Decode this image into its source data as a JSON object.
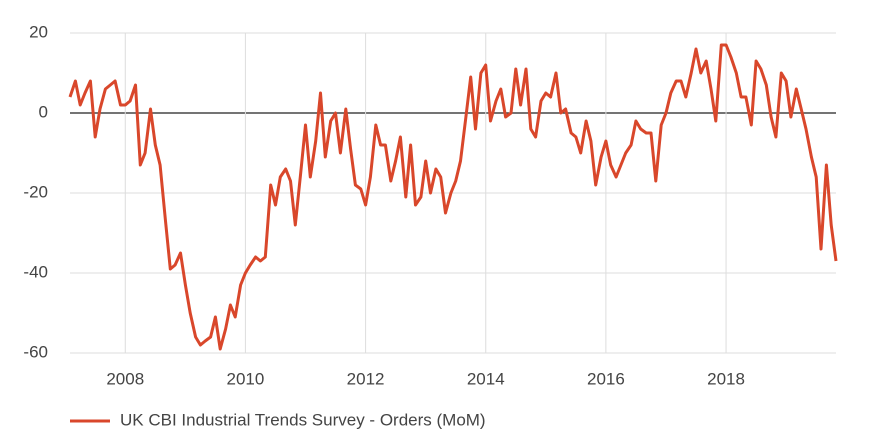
{
  "chart_data": {
    "type": "line",
    "x": [
      2007.08,
      2007.17,
      2007.25,
      2007.33,
      2007.42,
      2007.5,
      2007.58,
      2007.67,
      2007.75,
      2007.83,
      2007.92,
      2008,
      2008.08,
      2008.17,
      2008.25,
      2008.33,
      2008.42,
      2008.5,
      2008.58,
      2008.67,
      2008.75,
      2008.83,
      2008.92,
      2009,
      2009.08,
      2009.17,
      2009.25,
      2009.33,
      2009.42,
      2009.5,
      2009.58,
      2009.67,
      2009.75,
      2009.83,
      2009.92,
      2010,
      2010.08,
      2010.17,
      2010.25,
      2010.33,
      2010.42,
      2010.5,
      2010.58,
      2010.67,
      2010.75,
      2010.83,
      2010.92,
      2011,
      2011.08,
      2011.17,
      2011.25,
      2011.33,
      2011.42,
      2011.5,
      2011.58,
      2011.67,
      2011.75,
      2011.83,
      2011.92,
      2012,
      2012.08,
      2012.17,
      2012.25,
      2012.33,
      2012.42,
      2012.5,
      2012.58,
      2012.67,
      2012.75,
      2012.83,
      2012.92,
      2013,
      2013.08,
      2013.17,
      2013.25,
      2013.33,
      2013.42,
      2013.5,
      2013.58,
      2013.67,
      2013.75,
      2013.83,
      2013.92,
      2014,
      2014.08,
      2014.17,
      2014.25,
      2014.33,
      2014.42,
      2014.5,
      2014.58,
      2014.67,
      2014.75,
      2014.83,
      2014.92,
      2015,
      2015.08,
      2015.17,
      2015.25,
      2015.33,
      2015.42,
      2015.5,
      2015.58,
      2015.67,
      2015.75,
      2015.83,
      2015.92,
      2016,
      2016.08,
      2016.17,
      2016.25,
      2016.33,
      2016.42,
      2016.5,
      2016.58,
      2016.67,
      2016.75,
      2016.83,
      2016.92,
      2017,
      2017.08,
      2017.17,
      2017.25,
      2017.33,
      2017.42,
      2017.5,
      2017.58,
      2017.67,
      2017.75,
      2017.83,
      2017.92,
      2018,
      2018.08,
      2018.17,
      2018.25,
      2018.33,
      2018.42,
      2018.5,
      2018.58,
      2018.67,
      2018.75,
      2018.83,
      2018.92,
      2019,
      2019.08,
      2019.17,
      2019.25,
      2019.33,
      2019.42,
      2019.5,
      2019.58,
      2019.67,
      2019.75,
      2019.83
    ],
    "series": [
      {
        "name": "UK CBI Industrial Trends Survey - Orders (MoM)",
        "color": "#d9472b",
        "values": [
          4,
          8,
          2,
          5,
          8,
          -6,
          1,
          6,
          7,
          8,
          2,
          2,
          3,
          7,
          -13,
          -10,
          1,
          -8,
          -13,
          -27,
          -39,
          -38,
          -35,
          -43,
          -50,
          -56,
          -58,
          -57,
          -56,
          -51,
          -59,
          -54,
          -48,
          -51,
          -43,
          -40,
          -38,
          -36,
          -37,
          -36,
          -18,
          -23,
          -16,
          -14,
          -17,
          -28,
          -15,
          -3,
          -16,
          -7,
          5,
          -11,
          -2,
          0,
          -10,
          1,
          -9,
          -18,
          -19,
          -23,
          -16,
          -3,
          -8,
          -8,
          -17,
          -12,
          -6,
          -21,
          -8,
          -23,
          -21,
          -12,
          -20,
          -14,
          -16,
          -25,
          -20,
          -17,
          -12,
          -1,
          9,
          -4,
          10,
          12,
          -2,
          3,
          6,
          -1,
          0,
          11,
          2,
          11,
          -4,
          -6,
          3,
          5,
          4,
          10,
          0,
          1,
          -5,
          -6,
          -10,
          -2,
          -7,
          -18,
          -11,
          -7,
          -13,
          -16,
          -13,
          -10,
          -8,
          -2,
          -4,
          -5,
          -5,
          -17,
          -3,
          0,
          5,
          8,
          8,
          4,
          10,
          16,
          10,
          13,
          6,
          -2,
          17,
          17,
          14,
          10,
          4,
          4,
          -3,
          13,
          11,
          7,
          -1,
          -6,
          10,
          8,
          -1,
          6,
          1,
          -4,
          -11,
          -16,
          -34,
          -13,
          -28,
          -37
        ]
      }
    ],
    "xlim": [
      2007.08,
      2019.83
    ],
    "xticks": [
      2008,
      2010,
      2012,
      2014,
      2016,
      2018
    ],
    "ylim": [
      -60,
      20
    ],
    "yticks": [
      -60,
      -40,
      -20,
      0,
      20
    ],
    "grid": true
  }
}
